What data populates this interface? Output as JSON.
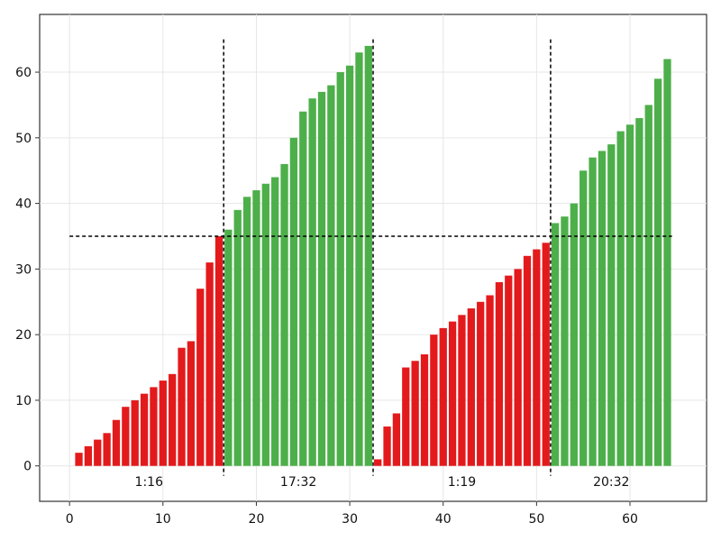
{
  "chart_data": {
    "type": "bar",
    "xlim": [
      -3.2,
      68.2
    ],
    "ylim": [
      -5.4,
      68.8
    ],
    "grid": true,
    "x_ticks": [
      0,
      10,
      20,
      30,
      40,
      50,
      60
    ],
    "y_ticks": [
      0,
      10,
      20,
      30,
      40,
      50,
      60
    ],
    "x_tick_labels": [
      "0",
      "10",
      "20",
      "30",
      "40",
      "50",
      "60"
    ],
    "y_tick_labels": [
      "0",
      "10",
      "20",
      "30",
      "40",
      "50",
      "60"
    ],
    "colors": {
      "low": "#e31a1c",
      "high": "#4daf4a"
    },
    "threshold": {
      "y": 35,
      "x_start": 0,
      "x_end": 64.5
    },
    "dividers": [
      16.5,
      32.5,
      51.5
    ],
    "divider_range": [
      -1.5,
      65
    ],
    "group_labels": [
      {
        "text": "1:16",
        "x": 8.5,
        "y": -2.4
      },
      {
        "text": "17:32",
        "x": 24.5,
        "y": -2.4
      },
      {
        "text": "1:19",
        "x": 42,
        "y": -2.4
      },
      {
        "text": "20:32",
        "x": 58,
        "y": -2.4
      }
    ],
    "series": [
      {
        "x": [
          1,
          2,
          3,
          4,
          5,
          6,
          7,
          8,
          9,
          10,
          11,
          12,
          13,
          14,
          15,
          16,
          17,
          18,
          19,
          20,
          21,
          22,
          23,
          24,
          25,
          26,
          27,
          28,
          29,
          30,
          31,
          32,
          33,
          34,
          35,
          36,
          37,
          38,
          39,
          40,
          41,
          42,
          43,
          44,
          45,
          46,
          47,
          48,
          49,
          50,
          51,
          52,
          53,
          54,
          55,
          56,
          57,
          58,
          59,
          60,
          61,
          62,
          63,
          64
        ],
        "values": [
          2,
          3,
          4,
          5,
          7,
          9,
          10,
          11,
          12,
          13,
          14,
          18,
          19,
          27,
          31,
          35,
          36,
          39,
          41,
          42,
          43,
          44,
          46,
          50,
          54,
          56,
          57,
          58,
          60,
          61,
          63,
          64,
          1,
          6,
          8,
          15,
          16,
          17,
          20,
          21,
          22,
          23,
          24,
          25,
          26,
          28,
          29,
          30,
          32,
          33,
          34,
          37,
          38,
          40,
          45,
          47,
          48,
          49,
          51,
          52,
          53,
          55,
          59,
          62
        ]
      }
    ]
  }
}
